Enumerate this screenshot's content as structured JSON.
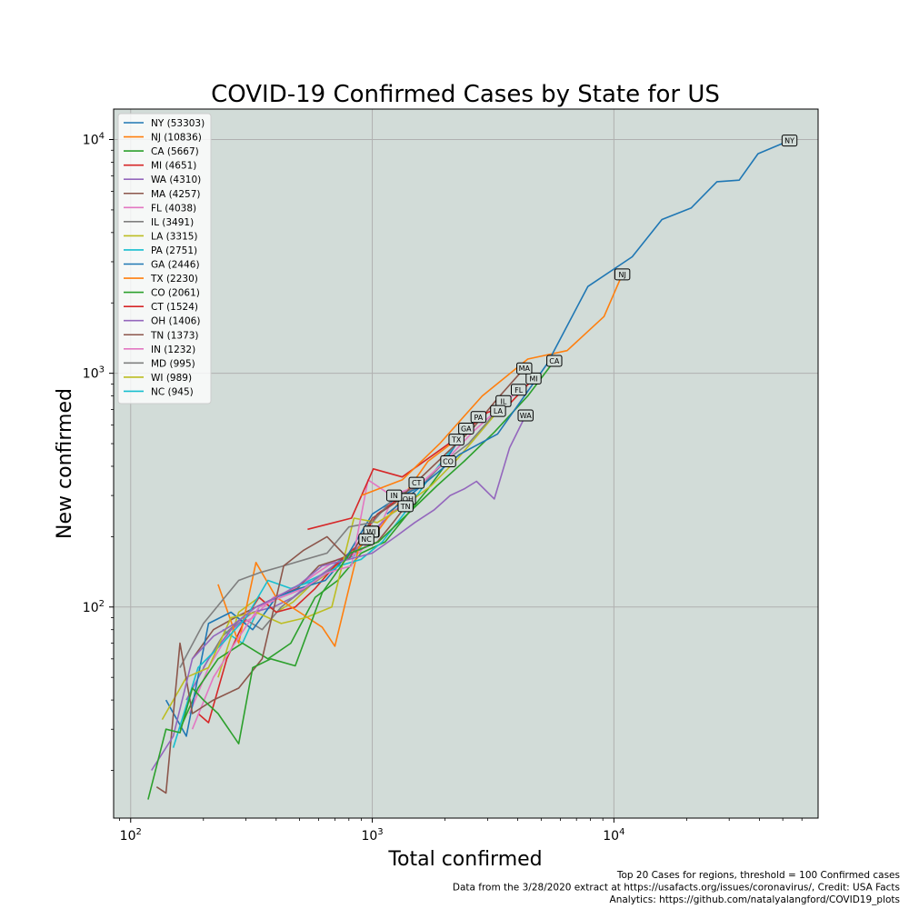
{
  "chart_data": {
    "type": "line",
    "title": "COVID-19 Confirmed Cases by State for US",
    "xlabel": "Total confirmed",
    "ylabel": "New confirmed",
    "xscale": "log",
    "yscale": "log",
    "xlim": [
      85,
      70000
    ],
    "ylim": [
      12.5,
      13500
    ],
    "grid": true,
    "legend_position": "top-left",
    "x_ticks": [
      {
        "value": 100,
        "base": "10",
        "exp": "2"
      },
      {
        "value": 1000,
        "base": "10",
        "exp": "3"
      },
      {
        "value": 10000,
        "base": "10",
        "exp": "4"
      }
    ],
    "y_ticks": [
      {
        "value": 100,
        "base": "10",
        "exp": "2"
      },
      {
        "value": 1000,
        "base": "10",
        "exp": "3"
      },
      {
        "value": 10000,
        "base": "10",
        "exp": "4"
      }
    ],
    "series": [
      {
        "name": "NY",
        "legend": "NY (53303)",
        "color": "#1f77b4",
        "x": [
          1150,
          1600,
          2300,
          3300,
          5300,
          7800,
          11900,
          15800,
          20900,
          26700,
          33000,
          39500,
          53300
        ],
        "y": [
          250,
          330,
          450,
          550,
          1100,
          2350,
          3150,
          4550,
          5100,
          6600,
          6700,
          8700,
          9900
        ]
      },
      {
        "name": "NJ",
        "legend": "NJ (10836)",
        "color": "#ff7f0e",
        "x": [
          900,
          1330,
          1900,
          2850,
          4400,
          6400,
          9100,
          10836
        ],
        "y": [
          300,
          350,
          500,
          800,
          1150,
          1250,
          1750,
          2650
        ]
      },
      {
        "name": "CA",
        "legend": "CA (5667)",
        "color": "#2ca02c",
        "x": [
          118,
          140,
          160,
          180,
          200,
          230,
          280,
          320,
          380,
          480,
          620,
          810,
          1060,
          1400,
          1850,
          2400,
          3200,
          4400,
          5667
        ],
        "y": [
          15,
          30,
          29,
          45,
          40,
          35,
          26,
          55,
          60,
          56,
          115,
          170,
          190,
          250,
          330,
          420,
          560,
          800,
          1130
        ]
      },
      {
        "name": "MI",
        "legend": "MI (4651)",
        "color": "#d62728",
        "x": [
          540,
          820,
          1010,
          1330,
          1800,
          2300,
          3000,
          3700,
          4651
        ],
        "y": [
          215,
          240,
          390,
          360,
          450,
          540,
          680,
          740,
          950
        ]
      },
      {
        "name": "WA",
        "legend": "WA (4310)",
        "color": "#9467bd",
        "x": [
          122,
          150,
          180,
          220,
          270,
          330,
          400,
          500,
          620,
          800,
          1000,
          1250,
          1500,
          1800,
          2100,
          2400,
          2700,
          3200,
          3700,
          4310
        ],
        "y": [
          20,
          28,
          60,
          75,
          85,
          100,
          110,
          125,
          150,
          160,
          170,
          200,
          230,
          260,
          300,
          320,
          345,
          290,
          480,
          660
        ]
      },
      {
        "name": "MA",
        "legend": "MA (4257)",
        "color": "#8c564b",
        "x": [
          128,
          140,
          160,
          180,
          220,
          280,
          350,
          430,
          520,
          650,
          800,
          1000,
          1250,
          1600,
          2050,
          2600,
          3300,
          4257
        ],
        "y": [
          17,
          16,
          70,
          35,
          40,
          45,
          60,
          150,
          175,
          200,
          160,
          240,
          280,
          360,
          460,
          580,
          780,
          1050
        ]
      },
      {
        "name": "FL",
        "legend": "FL (4038)",
        "color": "#e377c2",
        "x": [
          180,
          220,
          270,
          340,
          420,
          520,
          650,
          820,
          960,
          1200,
          1550,
          2000,
          2600,
          3300,
          4038
        ],
        "y": [
          30,
          50,
          70,
          100,
          110,
          120,
          140,
          150,
          350,
          300,
          330,
          420,
          560,
          700,
          850
        ]
      },
      {
        "name": "IL",
        "legend": "IL (3491)",
        "color": "#7f7f7f",
        "x": [
          160,
          200,
          280,
          340,
          430,
          530,
          650,
          800,
          1000,
          1250,
          1600,
          2000,
          2500,
          3000,
          3491
        ],
        "y": [
          55,
          85,
          130,
          140,
          150,
          160,
          170,
          220,
          230,
          300,
          330,
          420,
          500,
          620,
          760
        ]
      },
      {
        "name": "LA",
        "legend": "LA (3315)",
        "color": "#bcbd22",
        "x": [
          135,
          170,
          210,
          260,
          330,
          420,
          530,
          680,
          840,
          1050,
          1350,
          1750,
          2250,
          2800,
          3315
        ],
        "y": [
          33,
          50,
          55,
          90,
          95,
          85,
          90,
          100,
          240,
          230,
          270,
          330,
          430,
          560,
          690
        ]
      },
      {
        "name": "PA",
        "legend": "PA (2751)",
        "color": "#17becf",
        "x": [
          150,
          190,
          240,
          300,
          370,
          460,
          580,
          730,
          900,
          1100,
          1350,
          1700,
          2150,
          2751
        ],
        "y": [
          25,
          55,
          70,
          90,
          130,
          120,
          130,
          150,
          160,
          190,
          250,
          350,
          480,
          650
        ]
      },
      {
        "name": "GA",
        "legend": "GA (2446)",
        "color": "#1f77b4",
        "x": [
          140,
          170,
          210,
          260,
          320,
          400,
          500,
          640,
          800,
          1000,
          1250,
          1600,
          2000,
          2446
        ],
        "y": [
          40,
          28,
          85,
          95,
          80,
          110,
          120,
          130,
          170,
          250,
          290,
          330,
          420,
          580
        ]
      },
      {
        "name": "TX",
        "legend": "TX (2230)",
        "color": "#ff7f0e",
        "x": [
          230,
          280,
          330,
          400,
          500,
          620,
          700,
          880,
          1050,
          1350,
          1700,
          2230
        ],
        "y": [
          125,
          70,
          155,
          110,
          95,
          82,
          68,
          180,
          210,
          300,
          420,
          520
        ]
      },
      {
        "name": "CO",
        "legend": "CO (2061)",
        "color": "#2ca02c",
        "x": [
          160,
          190,
          230,
          290,
          370,
          460,
          580,
          720,
          900,
          1130,
          1400,
          1700,
          2061
        ],
        "y": [
          30,
          45,
          60,
          70,
          60,
          70,
          110,
          130,
          170,
          190,
          250,
          320,
          420
        ]
      },
      {
        "name": "CT",
        "legend": "CT (1524)",
        "color": "#d62728",
        "x": [
          190,
          210,
          250,
          300,
          340,
          400,
          480,
          580,
          700,
          850,
          1050,
          1280,
          1524
        ],
        "y": [
          35,
          32,
          60,
          90,
          110,
          95,
          100,
          120,
          150,
          180,
          250,
          290,
          340
        ]
      },
      {
        "name": "OH",
        "legend": "OH (1406)",
        "color": "#9467bd",
        "x": [
          170,
          210,
          260,
          320,
          390,
          470,
          570,
          690,
          830,
          1000,
          1200,
          1406
        ],
        "y": [
          40,
          60,
          80,
          95,
          100,
          110,
          130,
          150,
          170,
          210,
          250,
          290
        ]
      },
      {
        "name": "TN",
        "legend": "TN (1373)",
        "color": "#8c564b",
        "x": [
          180,
          220,
          270,
          330,
          400,
          490,
          600,
          730,
          880,
          1050,
          1220,
          1373
        ],
        "y": [
          60,
          80,
          90,
          100,
          110,
          120,
          150,
          160,
          175,
          190,
          230,
          270
        ]
      },
      {
        "name": "IN",
        "legend": "IN (1232)",
        "color": "#e377c2",
        "x": [
          175,
          210,
          260,
          320,
          390,
          480,
          590,
          720,
          880,
          1050,
          1232
        ],
        "y": [
          35,
          55,
          80,
          90,
          110,
          120,
          140,
          160,
          170,
          210,
          300
        ]
      },
      {
        "name": "MD",
        "legend": "MD (995)",
        "color": "#7f7f7f",
        "x": [
          200,
          240,
          290,
          350,
          420,
          500,
          590,
          700,
          830,
          995
        ],
        "y": [
          55,
          75,
          90,
          80,
          100,
          115,
          130,
          150,
          170,
          210
        ]
      },
      {
        "name": "WI",
        "legend": "WI (989)",
        "color": "#bcbd22",
        "x": [
          230,
          280,
          340,
          400,
          470,
          560,
          660,
          760,
          870,
          989
        ],
        "y": [
          50,
          95,
          110,
          95,
          105,
          125,
          140,
          160,
          175,
          210
        ]
      },
      {
        "name": "NC",
        "legend": "NC (945)",
        "color": "#17becf",
        "x": [
          240,
          290,
          340,
          400,
          470,
          550,
          640,
          740,
          840,
          945
        ],
        "y": [
          80,
          70,
          100,
          110,
          120,
          130,
          140,
          160,
          165,
          195
        ]
      }
    ],
    "annotations": [
      "Top 20 Cases for regions, threshold = 100 Confirmed cases",
      "Data from the 3/28/2020 extract at https://usafacts.org/issues/coronavirus/, Credit: USA Facts",
      "Analytics: https://github.com/natalyalangford/COVID19_plots"
    ]
  }
}
